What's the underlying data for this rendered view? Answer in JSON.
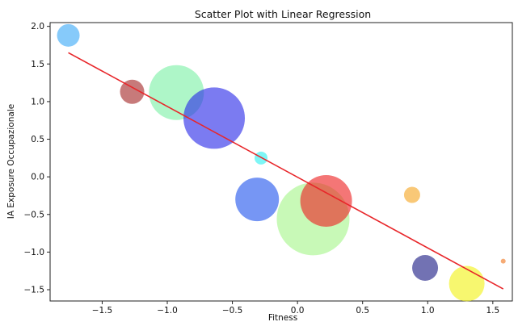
{
  "chart_data": {
    "type": "scatter",
    "title": "Scatter Plot with Linear Regression",
    "xlabel": "Fitness",
    "ylabel": "IA Exposure Occupazionale",
    "xlim": [
      -1.9,
      1.65
    ],
    "ylim": [
      -1.65,
      2.05
    ],
    "x_ticks": [
      {
        "value": -1.5,
        "label": "−1.5"
      },
      {
        "value": -1.0,
        "label": "−1.0"
      },
      {
        "value": -0.5,
        "label": "−0.5"
      },
      {
        "value": 0.0,
        "label": "0.0"
      },
      {
        "value": 0.5,
        "label": "0.5"
      },
      {
        "value": 1.0,
        "label": "1.0"
      },
      {
        "value": 1.5,
        "label": "1.5"
      }
    ],
    "y_ticks": [
      {
        "value": -1.5,
        "label": "−1.5"
      },
      {
        "value": -1.0,
        "label": "−1.0"
      },
      {
        "value": -0.5,
        "label": "−0.5"
      },
      {
        "value": 0.0,
        "label": "0.0"
      },
      {
        "value": 0.5,
        "label": "0.5"
      },
      {
        "value": 1.0,
        "label": "1.0"
      },
      {
        "value": 1.5,
        "label": "1.5"
      },
      {
        "value": 2.0,
        "label": "2.0"
      }
    ],
    "points": [
      {
        "x": -1.76,
        "y": 1.88,
        "size": 14,
        "color": "#3ba9f7"
      },
      {
        "x": -1.27,
        "y": 1.13,
        "size": 15,
        "color": "#a52828"
      },
      {
        "x": -0.93,
        "y": 1.12,
        "size": 34,
        "color": "#7cf0a6"
      },
      {
        "x": -0.64,
        "y": 0.78,
        "size": 38,
        "color": "#2a2ae8"
      },
      {
        "x": -0.28,
        "y": 0.25,
        "size": 8,
        "color": "#2ef0f0"
      },
      {
        "x": -0.31,
        "y": -0.3,
        "size": 27,
        "color": "#2255ee"
      },
      {
        "x": 0.12,
        "y": -0.56,
        "size": 45,
        "color": "#a6f58a"
      },
      {
        "x": 0.22,
        "y": -0.32,
        "size": 32,
        "color": "#ee2222"
      },
      {
        "x": 0.88,
        "y": -0.24,
        "size": 10,
        "color": "#f5a623"
      },
      {
        "x": 0.98,
        "y": -1.21,
        "size": 16,
        "color": "#1c1c85"
      },
      {
        "x": 1.3,
        "y": -1.42,
        "size": 22,
        "color": "#f2f216"
      },
      {
        "x": 1.58,
        "y": -1.12,
        "size": 3,
        "color": "#f07820"
      }
    ],
    "regression": {
      "x": [
        -1.76,
        1.58
      ],
      "y": [
        1.65,
        -1.49
      ],
      "color": "#e8262a"
    },
    "grid": false,
    "legend": "none"
  }
}
